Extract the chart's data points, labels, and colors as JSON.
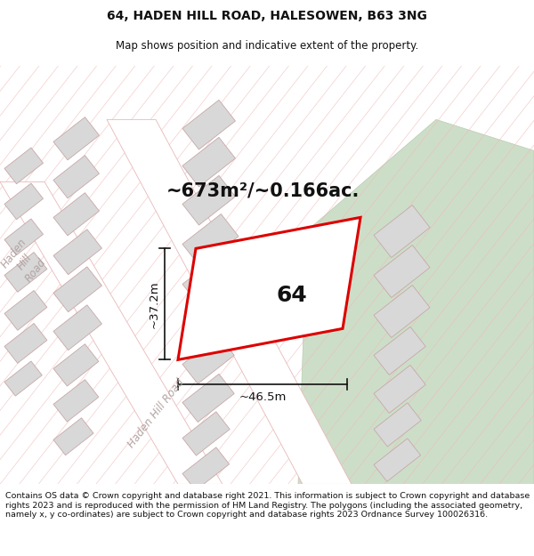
{
  "title": "64, HADEN HILL ROAD, HALESOWEN, B63 3NG",
  "subtitle": "Map shows position and indicative extent of the property.",
  "footer": "Contains OS data © Crown copyright and database right 2021. This information is subject to Crown copyright and database rights 2023 and is reproduced with the permission of HM Land Registry. The polygons (including the associated geometry, namely x, y co-ordinates) are subject to Crown copyright and database rights 2023 Ordnance Survey 100026316.",
  "area_label": "~673m²/~0.166ac.",
  "width_label": "~46.5m",
  "height_label": "~37.2m",
  "property_number": "64",
  "bg_color": "#ffffff",
  "map_bg": "#eeeeee",
  "property_fill": "#ffffff",
  "property_stroke": "#dd0000",
  "green_fill": "#cddec8",
  "road_fill": "#ffffff",
  "road_edge": "#e8b8b8",
  "building_fill": "#d8d8d8",
  "building_edge": "#c8a8a8",
  "hatch_color": "#f0b8b8",
  "dim_color": "#111111",
  "title_fontsize": 10,
  "subtitle_fontsize": 8.5,
  "footer_fontsize": 6.8,
  "area_fontsize": 15,
  "number_fontsize": 18,
  "dim_fontsize": 9.5,
  "road_label_fontsize": 8.5
}
